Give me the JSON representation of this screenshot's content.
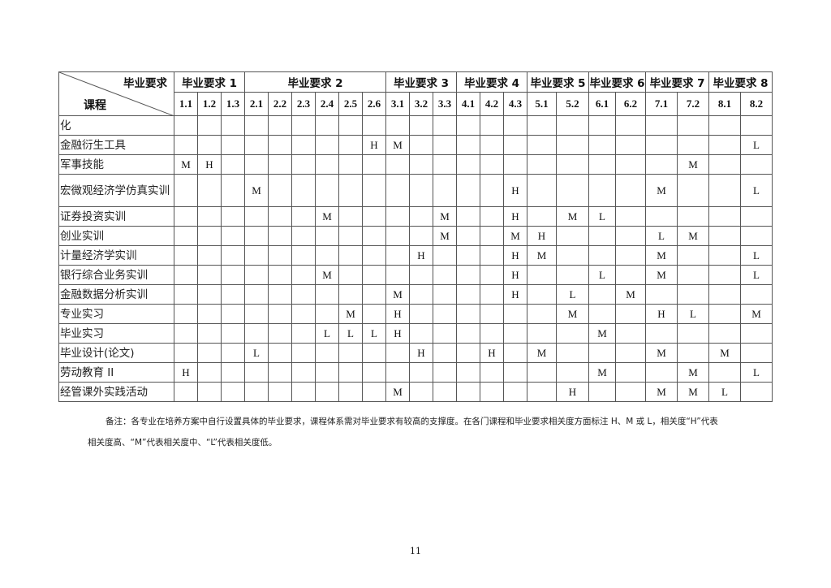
{
  "table": {
    "corner_top": "毕业要求",
    "corner_bottom": "课程",
    "groups": [
      {
        "label": "毕业要求 1",
        "span": 3
      },
      {
        "label": "毕业要求 2",
        "span": 6
      },
      {
        "label": "毕业要求 3",
        "span": 3
      },
      {
        "label": "毕业要求 4",
        "span": 3
      },
      {
        "label": "毕业要求 5",
        "span": 2
      },
      {
        "label": "毕业要求 6",
        "span": 2
      },
      {
        "label": "毕业要求 7",
        "span": 2
      },
      {
        "label": "毕业要求 8",
        "span": 2
      }
    ],
    "subs": [
      "1.1",
      "1.2",
      "1.3",
      "2.1",
      "2.2",
      "2.3",
      "2.4",
      "2.5",
      "2.6",
      "3.1",
      "3.2",
      "3.3",
      "4.1",
      "4.2",
      "4.3",
      "5.1",
      "5.2",
      "6.1",
      "6.2",
      "7.1",
      "7.2",
      "8.1",
      "8.2"
    ],
    "rows": [
      {
        "course": "化",
        "cells": [
          "",
          "",
          "",
          "",
          "",
          "",
          "",
          "",
          "",
          "",
          "",
          "",
          "",
          "",
          "",
          "",
          "",
          "",
          "",
          "",
          "",
          "",
          ""
        ]
      },
      {
        "course": "金融衍生工具",
        "cells": [
          "",
          "",
          "",
          "",
          "",
          "",
          "",
          "",
          "H",
          "M",
          "",
          "",
          "",
          "",
          "",
          "",
          "",
          "",
          "",
          "",
          "",
          "",
          "L"
        ]
      },
      {
        "course": "军事技能",
        "cells": [
          "M",
          "H",
          "",
          "",
          "",
          "",
          "",
          "",
          "",
          "",
          "",
          "",
          "",
          "",
          "",
          "",
          "",
          "",
          "",
          "",
          "M",
          "",
          ""
        ]
      },
      {
        "course": "宏微观经济学仿真实训",
        "cells": [
          "",
          "",
          "",
          "M",
          "",
          "",
          "",
          "",
          "",
          "",
          "",
          "",
          "",
          "",
          "H",
          "",
          "",
          "",
          "",
          "M",
          "",
          "",
          "L"
        ]
      },
      {
        "course": "证券投资实训",
        "cells": [
          "",
          "",
          "",
          "",
          "",
          "",
          "M",
          "",
          "",
          "",
          "",
          "M",
          "",
          "",
          "H",
          "",
          "M",
          "L",
          "",
          "",
          "",
          "",
          ""
        ]
      },
      {
        "course": "创业实训",
        "cells": [
          "",
          "",
          "",
          "",
          "",
          "",
          "",
          "",
          "",
          "",
          "",
          "M",
          "",
          "",
          "M",
          "H",
          "",
          "",
          "",
          "L",
          "M",
          "",
          ""
        ]
      },
      {
        "course": "计量经济学实训",
        "cells": [
          "",
          "",
          "",
          "",
          "",
          "",
          "",
          "",
          "",
          "",
          "H",
          "",
          "",
          "",
          "H",
          "M",
          "",
          "",
          "",
          "M",
          "",
          "",
          "L"
        ]
      },
      {
        "course": "银行综合业务实训",
        "cells": [
          "",
          "",
          "",
          "",
          "",
          "",
          "M",
          "",
          "",
          "",
          "",
          "",
          "",
          "",
          "H",
          "",
          "",
          "L",
          "",
          "M",
          "",
          "",
          "L"
        ]
      },
      {
        "course": "金融数据分析实训",
        "cells": [
          "",
          "",
          "",
          "",
          "",
          "",
          "",
          "",
          "",
          "M",
          "",
          "",
          "",
          "",
          "H",
          "",
          "L",
          "",
          "M",
          "",
          "",
          "",
          ""
        ]
      },
      {
        "course": "专业实习",
        "cells": [
          "",
          "",
          "",
          "",
          "",
          "",
          "",
          "M",
          "",
          "H",
          "",
          "",
          "",
          "",
          "",
          "",
          "M",
          "",
          "",
          "H",
          "L",
          "",
          "M"
        ]
      },
      {
        "course": "毕业实习",
        "cells": [
          "",
          "",
          "",
          "",
          "",
          "",
          "L",
          "L",
          "L",
          "H",
          "",
          "",
          "",
          "",
          "",
          "",
          "",
          "M",
          "",
          "",
          "",
          "",
          ""
        ]
      },
      {
        "course": "毕业设计(论文)",
        "cells": [
          "",
          "",
          "",
          "L",
          "",
          "",
          "",
          "",
          "",
          "",
          "H",
          "",
          "",
          "H",
          "",
          "M",
          "",
          "",
          "",
          "M",
          "",
          "M",
          ""
        ]
      },
      {
        "course": "劳动教育 II",
        "cells": [
          "H",
          "",
          "",
          "",
          "",
          "",
          "",
          "",
          "",
          "",
          "",
          "",
          "",
          "",
          "",
          "",
          "",
          "M",
          "",
          "",
          "M",
          "",
          "L"
        ]
      },
      {
        "course": "经管课外实践活动",
        "cells": [
          "",
          "",
          "",
          "",
          "",
          "",
          "",
          "",
          "",
          "M",
          "",
          "",
          "",
          "",
          "",
          "",
          "H",
          "",
          "",
          "M",
          "M",
          "L",
          ""
        ]
      }
    ]
  },
  "note": {
    "line1": "备注：各专业在培养方案中自行设置具体的毕业要求，课程体系需对毕业要求有较高的支撑度。在各门课程和毕业要求相关度方面标注 H、M 或 L，相关度“H”代表",
    "line2": "相关度高、“M”代表相关度中、“L”代表相关度低。"
  },
  "page_number": "11"
}
